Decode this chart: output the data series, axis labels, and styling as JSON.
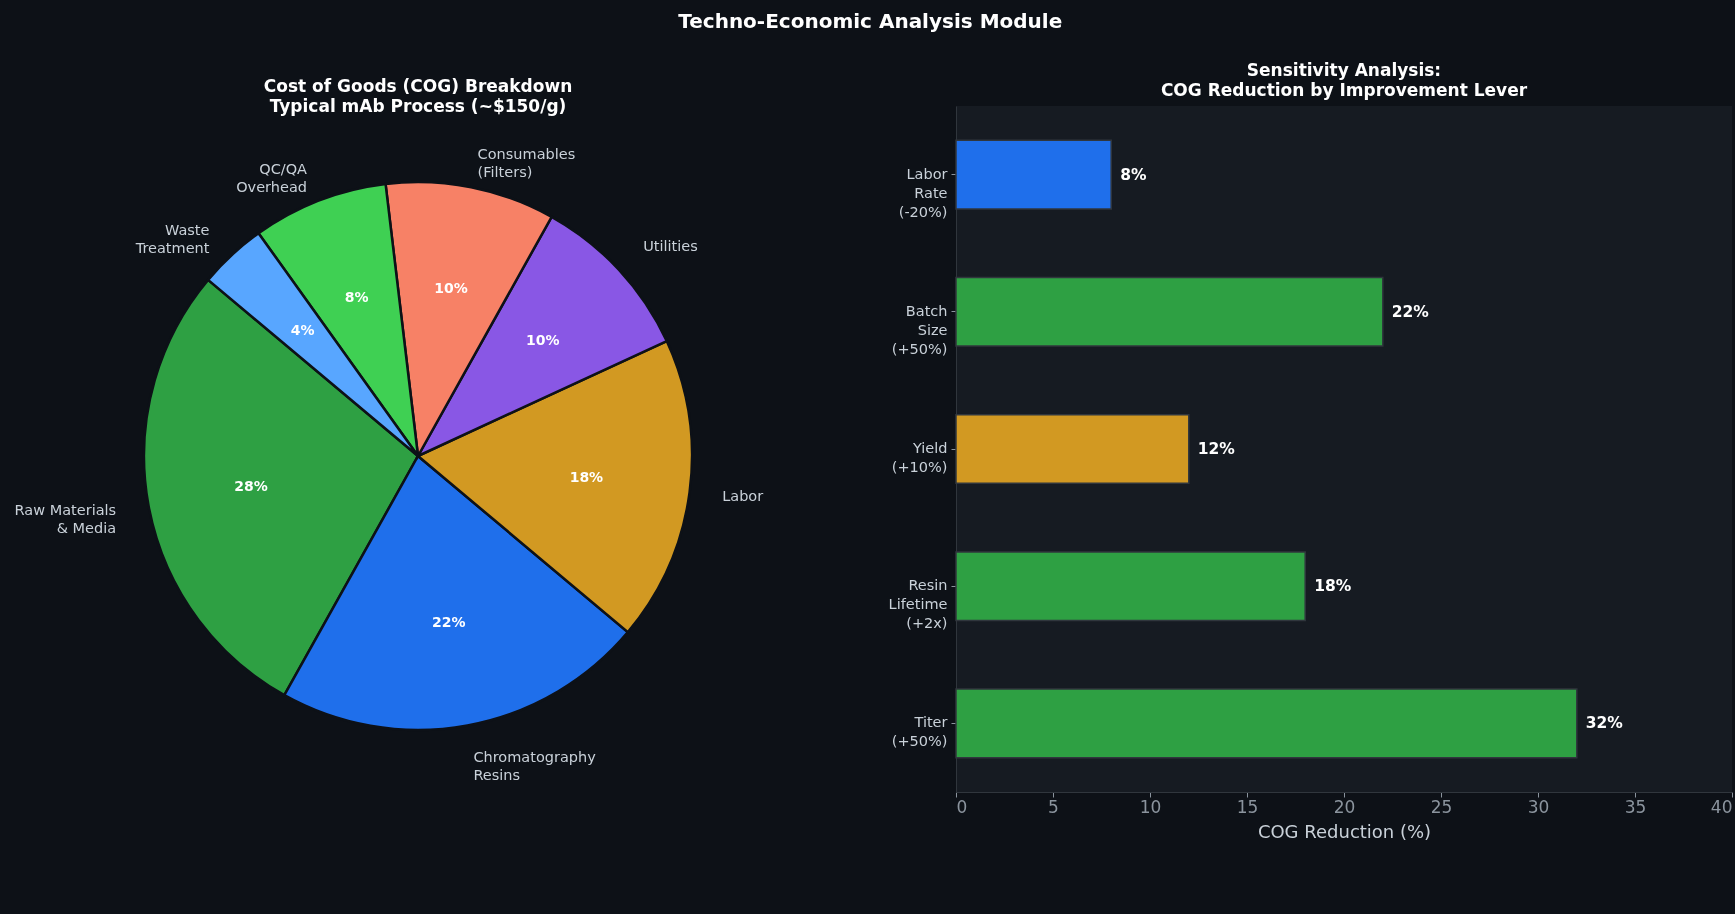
{
  "chart_data": [
    {
      "type": "other",
      "title": "Techno-Economic Analysis Module"
    },
    {
      "type": "pie",
      "title": "Cost of Goods (COG) Breakdown\nTypical mAb Process (~$150/g)",
      "categories": [
        "Raw Materials\n& Media",
        "Chromatography\nResins",
        "Labor",
        "Utilities",
        "Consumables\n(Filters)",
        "QC/QA\nOverhead",
        "Waste\nTreatment"
      ],
      "values": [
        28,
        22,
        18,
        10,
        10,
        8,
        4
      ],
      "colors": [
        "#2ea043",
        "#1f6feb",
        "#d29922",
        "#8957e5",
        "#f78166",
        "#3fd053",
        "#58a6ff"
      ],
      "value_labels": [
        "28%",
        "22%",
        "18%",
        "10%",
        "10%",
        "8%",
        "4%"
      ]
    },
    {
      "type": "bar",
      "orientation": "horizontal",
      "title": "Sensitivity Analysis:\nCOG Reduction by Improvement Lever",
      "categories": [
        "Labor\nRate\n(-20%)",
        "Batch\nSize\n(+50%)",
        "Yield\n(+10%)",
        "Resin\nLifetime\n(+2x)",
        "Titer\n(+50%)"
      ],
      "values": [
        8,
        22,
        12,
        18,
        32
      ],
      "colors": [
        "#1f6feb",
        "#2ea043",
        "#d29922",
        "#2ea043",
        "#2ea043"
      ],
      "value_labels": [
        "8%",
        "22%",
        "12%",
        "18%",
        "32%"
      ],
      "xlabel": "COG Reduction (%)",
      "xlim": [
        0,
        40
      ],
      "xticks": [
        0,
        5,
        10,
        15,
        20,
        25,
        30,
        35,
        40
      ]
    }
  ]
}
